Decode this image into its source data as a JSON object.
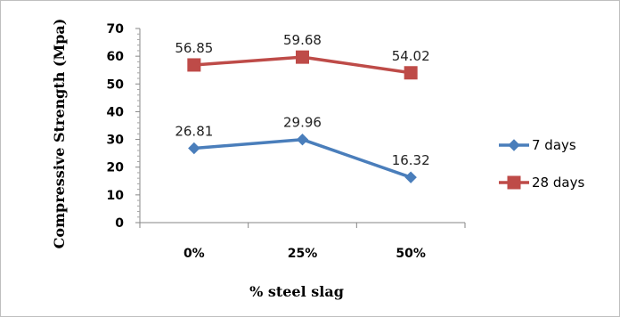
{
  "chart_data": {
    "type": "line",
    "categories": [
      "0%",
      "25%",
      "50%"
    ],
    "series": [
      {
        "name": "7 days",
        "values": [
          26.81,
          29.96,
          16.32
        ],
        "labels": [
          "26.81",
          "29.96",
          "16.32"
        ],
        "color": "#4a7ebb",
        "marker": "diamond"
      },
      {
        "name": "28 days",
        "values": [
          56.85,
          59.68,
          54.02
        ],
        "labels": [
          "56.85",
          "59.68",
          "54.02"
        ],
        "color": "#be4b48",
        "marker": "square"
      }
    ],
    "xlabel": "% steel slag",
    "ylabel": "Compressive Strength (Mpa)",
    "ylim": [
      0,
      70
    ],
    "yticks": [
      "0",
      "10",
      "20",
      "30",
      "40",
      "50",
      "60",
      "70"
    ],
    "grid": false,
    "legend_position": "right",
    "border_color": "#bfbfbf"
  }
}
